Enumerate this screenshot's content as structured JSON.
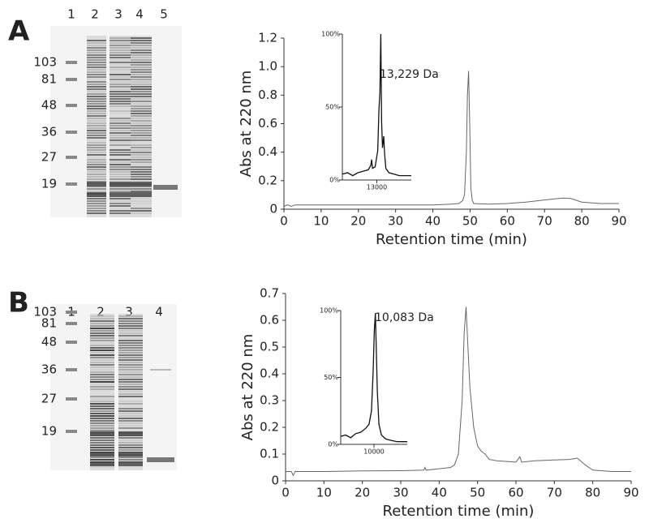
{
  "panels": [
    {
      "label": "A",
      "lanes": [
        "1",
        "2",
        "3",
        "4",
        "5"
      ],
      "markers": [
        "103",
        "81",
        "48",
        "36",
        "27",
        "19"
      ]
    },
    {
      "label": "B",
      "lanes": [
        "1",
        "2",
        "3",
        "4"
      ],
      "markers": [
        "103",
        "81",
        "48",
        "36",
        "27",
        "19"
      ]
    }
  ],
  "chart_data": [
    {
      "type": "line",
      "xlabel": "Retention time (min)",
      "ylabel": "Abs at 220 nm",
      "color": "#666",
      "x": [
        0,
        1,
        2,
        3,
        10,
        20,
        30,
        40,
        45,
        47,
        48,
        48.5,
        49,
        49.3,
        49.6,
        49.9,
        50.2,
        50.6,
        51,
        55,
        60,
        65,
        70,
        75,
        77,
        80,
        85,
        90
      ],
      "values": [
        0.02,
        0.03,
        0.02,
        0.03,
        0.03,
        0.03,
        0.03,
        0.03,
        0.035,
        0.04,
        0.06,
        0.1,
        0.4,
        0.8,
        0.97,
        0.6,
        0.15,
        0.06,
        0.04,
        0.035,
        0.04,
        0.05,
        0.065,
        0.078,
        0.075,
        0.05,
        0.04,
        0.04
      ],
      "xlim": [
        0,
        90
      ],
      "xticks": [
        0,
        10,
        20,
        30,
        40,
        50,
        60,
        70,
        80,
        90
      ],
      "ylim": [
        0,
        1.2
      ],
      "yticks": [
        0,
        0.2,
        0.4,
        0.6,
        0.8,
        {
          "value": 1,
          "label": "1.0"
        },
        1.2
      ]
    },
    {
      "type": "line",
      "annotation": "13,229 Da",
      "color": "#111",
      "x": [
        11000,
        11300,
        11600,
        11900,
        12200,
        12500,
        12650,
        12700,
        12750,
        12900,
        13050,
        13120,
        13180,
        13229,
        13280,
        13330,
        13400,
        13450,
        13520,
        13700,
        14000,
        14300,
        14600,
        15000
      ],
      "values": [
        4,
        5,
        3,
        5,
        6,
        7,
        10,
        14,
        8,
        9,
        20,
        48,
        60,
        100,
        40,
        22,
        30,
        18,
        8,
        5,
        4,
        3,
        3,
        3
      ],
      "xlim": [
        11000,
        15000
      ],
      "xticks": [
        13000
      ],
      "ylim": [
        0,
        100
      ],
      "yticks": [
        {
          "value": 0,
          "label": "0%"
        },
        {
          "value": 50,
          "label": "50%"
        },
        {
          "value": 100,
          "label": "100%"
        }
      ]
    },
    {
      "type": "line",
      "xlabel": "Retention time (min)",
      "ylabel": "Abs at 220 nm",
      "color": "#666",
      "x": [
        0,
        1.5,
        2,
        2.5,
        10,
        20,
        30,
        36,
        36.3,
        36.6,
        40,
        43,
        44,
        45,
        46,
        46.5,
        47,
        47.5,
        48,
        49,
        50,
        51,
        52,
        53,
        55,
        60,
        61,
        61.5,
        65,
        70,
        74,
        76,
        78,
        80,
        85,
        90
      ],
      "values": [
        0.035,
        0.035,
        0.02,
        0.035,
        0.035,
        0.037,
        0.038,
        0.04,
        0.05,
        0.04,
        0.045,
        0.05,
        0.06,
        0.1,
        0.3,
        0.55,
        0.65,
        0.5,
        0.35,
        0.2,
        0.13,
        0.11,
        0.1,
        0.08,
        0.075,
        0.07,
        0.09,
        0.07,
        0.075,
        0.078,
        0.08,
        0.085,
        0.06,
        0.04,
        0.035,
        0.035
      ],
      "xlim": [
        0,
        90
      ],
      "xticks": [
        0,
        10,
        20,
        30,
        40,
        50,
        60,
        70,
        80,
        90
      ],
      "ylim": [
        0,
        0.7
      ],
      "yticks": [
        0,
        0.1,
        0.2,
        0.3,
        0.4,
        0.5,
        0.6,
        0.7
      ]
    },
    {
      "type": "line",
      "annotation": "10,083 Da",
      "color": "#111",
      "x": [
        8000,
        8300,
        8600,
        8900,
        9200,
        9500,
        9700,
        9850,
        9950,
        10020,
        10083,
        10140,
        10200,
        10300,
        10450,
        10700,
        11000,
        11400,
        12000
      ],
      "values": [
        6,
        7,
        5,
        8,
        9,
        12,
        15,
        25,
        55,
        85,
        98,
        70,
        40,
        15,
        7,
        4,
        3,
        2,
        2
      ],
      "xlim": [
        8000,
        12000
      ],
      "xticks": [
        10000
      ],
      "ylim": [
        0,
        100
      ],
      "yticks": [
        {
          "value": 0,
          "label": "0%"
        },
        {
          "value": 50,
          "label": "50%"
        },
        {
          "value": 100,
          "label": "100%"
        }
      ]
    }
  ]
}
